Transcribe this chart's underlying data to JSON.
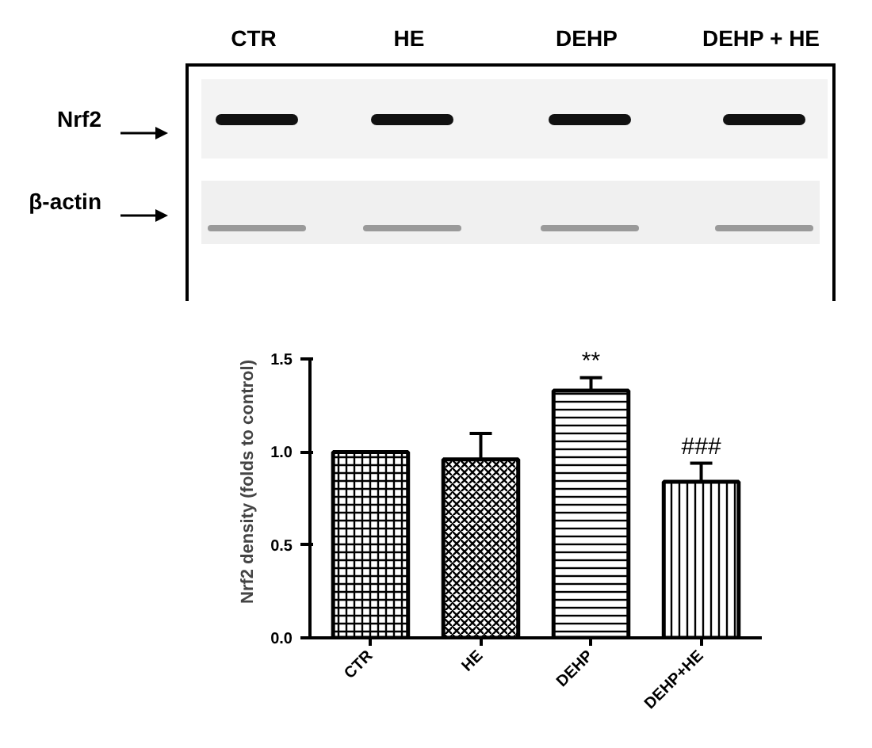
{
  "chart_data": {
    "type": "bar",
    "categories": [
      "CTR",
      "HE",
      "DEHP",
      "DEHP+HE"
    ],
    "values": [
      1.0,
      0.96,
      1.33,
      0.84
    ],
    "errors": [
      null,
      0.14,
      0.07,
      0.1
    ],
    "color": "#000000",
    "ylabel": "Nrf2 density (folds to control)",
    "ylim": [
      0,
      1.5
    ],
    "yticks": [
      {
        "value": 0,
        "label": "0.0"
      },
      {
        "value": 0.5,
        "label": "0.5"
      },
      {
        "value": 1.0,
        "label": "1.0"
      },
      {
        "value": 1.5,
        "label": "1.5"
      }
    ],
    "grid": false,
    "annotations": [
      {
        "text": "**",
        "x": "DEHP",
        "y": 1.4
      },
      {
        "text": "###",
        "x": "DEHP+HE",
        "y": 0.94
      },
      "CTR",
      "HE",
      "DEHP",
      "DEHP + HE",
      "Nrf2",
      "β-actin"
    ]
  }
}
